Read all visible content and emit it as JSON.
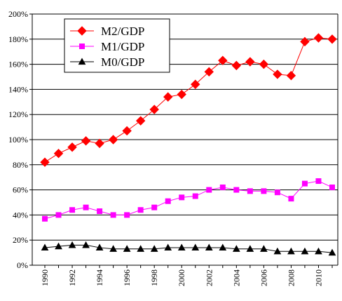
{
  "chart_data": {
    "type": "line",
    "title": "",
    "xlabel": "",
    "ylabel": "",
    "x": [
      1990,
      1991,
      1992,
      1993,
      1994,
      1995,
      1996,
      1997,
      1998,
      1999,
      2000,
      2001,
      2002,
      2003,
      2004,
      2005,
      2006,
      2007,
      2008,
      2009,
      2010,
      2011
    ],
    "x_tick_labels": [
      "1990",
      "1992",
      "1994",
      "1996",
      "1998",
      "2000",
      "2002",
      "2004",
      "2006",
      "2008",
      "2010"
    ],
    "y_tick_labels": [
      "0%",
      "20%",
      "40%",
      "60%",
      "80%",
      "100%",
      "120%",
      "140%",
      "160%",
      "180%",
      "200%"
    ],
    "ylim": [
      0,
      200
    ],
    "y_unit": "%",
    "grid": "horizontal",
    "legend_position": "top-left",
    "series": [
      {
        "name": "M2/GDP",
        "color": "#ff0000",
        "marker": "diamond",
        "values": [
          82,
          89,
          94,
          99,
          97,
          100,
          107,
          115,
          124,
          134,
          136,
          144,
          154,
          163,
          159,
          162,
          160,
          152,
          151,
          178,
          181,
          180
        ]
      },
      {
        "name": "M1/GDP",
        "color": "#ff00ff",
        "marker": "square",
        "values": [
          37,
          40,
          44,
          46,
          43,
          40,
          40,
          44,
          46,
          51,
          54,
          55,
          60,
          62,
          60,
          59,
          59,
          58,
          53,
          65,
          67,
          62
        ]
      },
      {
        "name": "M0/GDP",
        "color": "#000000",
        "marker": "triangle",
        "values": [
          14,
          15,
          16,
          16,
          14,
          13,
          13,
          13,
          13,
          14,
          14,
          14,
          14,
          14,
          13,
          13,
          13,
          11,
          11,
          11,
          11,
          10
        ]
      }
    ]
  }
}
